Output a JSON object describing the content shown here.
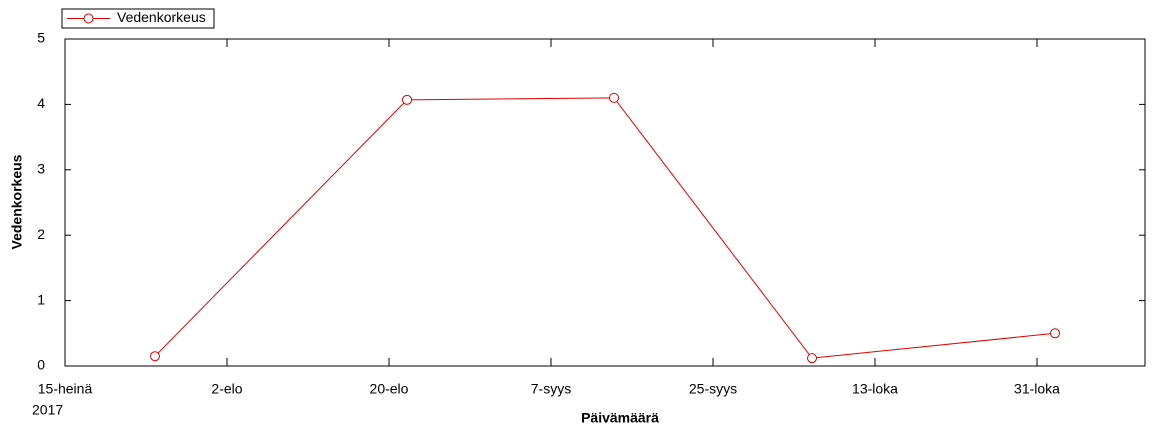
{
  "chart_data": {
    "type": "line",
    "x_label": "Päivämäärä",
    "y_label": "Vedenkorkeus",
    "x": [
      "2017-07-25",
      "2017-08-22",
      "2017-09-14",
      "2017-10-06",
      "2017-11-02"
    ],
    "series": [
      {
        "name": "Vedenkorkeus",
        "color": "#e00000",
        "values": [
          0.15,
          4.07,
          4.1,
          0.12,
          0.5
        ]
      }
    ],
    "xlim": [
      "2017-07-15",
      "2017-11-12"
    ],
    "xticks": [
      {
        "value": "2017-07-15",
        "label": "15-heinä"
      },
      {
        "value": "2017-08-02",
        "label": "2-elo"
      },
      {
        "value": "2017-08-20",
        "label": "20-elo"
      },
      {
        "value": "2017-09-07",
        "label": "7-syys"
      },
      {
        "value": "2017-09-25",
        "label": "25-syys"
      },
      {
        "value": "2017-10-13",
        "label": "13-loka"
      },
      {
        "value": "2017-10-31",
        "label": "31-loka"
      }
    ],
    "x_year": "2017",
    "ylim": [
      0,
      5
    ],
    "yticks": [
      0,
      1,
      2,
      3,
      4,
      5
    ],
    "legend": "top-left"
  }
}
